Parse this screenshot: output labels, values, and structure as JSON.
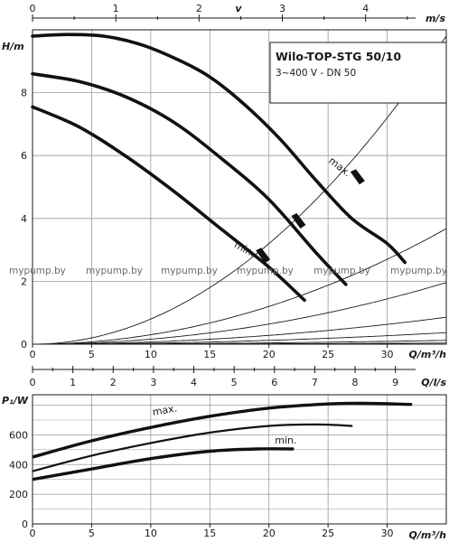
{
  "chart_data": [
    {
      "type": "line",
      "title": "Wilo-TOP-STG 50/10",
      "subtitle": "3~400 V - DN 50",
      "xlabel": "Q/m³/h",
      "ylabel": "H/m",
      "top_axis_label": "v",
      "top_axis_unit": "m/s",
      "xlim": [
        0,
        35
      ],
      "ylim": [
        0,
        10
      ],
      "top_axis_lim": [
        0,
        4.6
      ],
      "x_ticks": [
        "0",
        "5",
        "10",
        "15",
        "20",
        "25",
        "30"
      ],
      "y_ticks": [
        "0",
        "2",
        "4",
        "6",
        "8"
      ],
      "top_axis_ticks": [
        "0",
        "1",
        "2",
        "3",
        "4"
      ],
      "grid": true,
      "watermark": "mypump.by",
      "series": [
        {
          "name": "max.",
          "x": [
            0,
            3,
            6,
            9,
            12,
            15,
            18,
            21,
            24,
            27,
            30,
            31.5
          ],
          "y": [
            9.8,
            9.85,
            9.8,
            9.55,
            9.1,
            8.5,
            7.6,
            6.5,
            5.2,
            4.0,
            3.2,
            2.6
          ]
        },
        {
          "name": "",
          "x": [
            0,
            4,
            8,
            12,
            16,
            20,
            24,
            26.5
          ],
          "y": [
            8.6,
            8.35,
            7.85,
            7.05,
            5.9,
            4.6,
            2.9,
            1.9
          ]
        },
        {
          "name": "min.",
          "x": [
            0,
            4,
            8,
            12,
            16,
            20,
            23
          ],
          "y": [
            7.55,
            6.9,
            5.95,
            4.85,
            3.65,
            2.45,
            1.4
          ]
        }
      ],
      "curve_labels": [
        {
          "text": "max.",
          "x": 25,
          "y": 5.8
        },
        {
          "text": "min.",
          "x": 17,
          "y": 3.1
        }
      ],
      "markers": [
        {
          "x": 27.5,
          "y": 5.25
        },
        {
          "x": 22.5,
          "y": 3.85
        },
        {
          "x": 19.5,
          "y": 2.75
        }
      ],
      "system_curve_constants": [
        0.008,
        0.003,
        0.0016,
        0.0007,
        0.0003,
        0.0001,
        3e-05
      ]
    },
    {
      "type": "line",
      "xlabel": "Q/m³/h",
      "ylabel": "P₁/W",
      "top_axis_unit": "Q/l/s",
      "xlim": [
        0,
        35
      ],
      "ylim": [
        0,
        870
      ],
      "top_axis_lim": [
        0,
        9.5
      ],
      "x_ticks": [
        "0",
        "5",
        "10",
        "15",
        "20",
        "25",
        "30"
      ],
      "y_ticks": [
        "0",
        "200",
        "400",
        "600"
      ],
      "top_axis_ticks": [
        "0",
        "1",
        "2",
        "3",
        "4",
        "5",
        "6",
        "7",
        "8",
        "9"
      ],
      "grid": true,
      "series": [
        {
          "name": "max.",
          "x": [
            0,
            5,
            10,
            15,
            20,
            25,
            28,
            32
          ],
          "y": [
            450,
            560,
            650,
            725,
            780,
            808,
            812,
            805
          ]
        },
        {
          "name": "",
          "x": [
            0,
            5,
            10,
            15,
            20,
            24,
            27
          ],
          "y": [
            355,
            460,
            545,
            615,
            660,
            670,
            660
          ]
        },
        {
          "name": "min.",
          "x": [
            0,
            5,
            10,
            15,
            19,
            22
          ],
          "y": [
            300,
            370,
            440,
            490,
            505,
            505
          ]
        }
      ],
      "curve_labels": [
        {
          "text": "max.",
          "x": 10.2,
          "y": 730
        },
        {
          "text": "min.",
          "x": 20.5,
          "y": 540
        }
      ]
    }
  ]
}
